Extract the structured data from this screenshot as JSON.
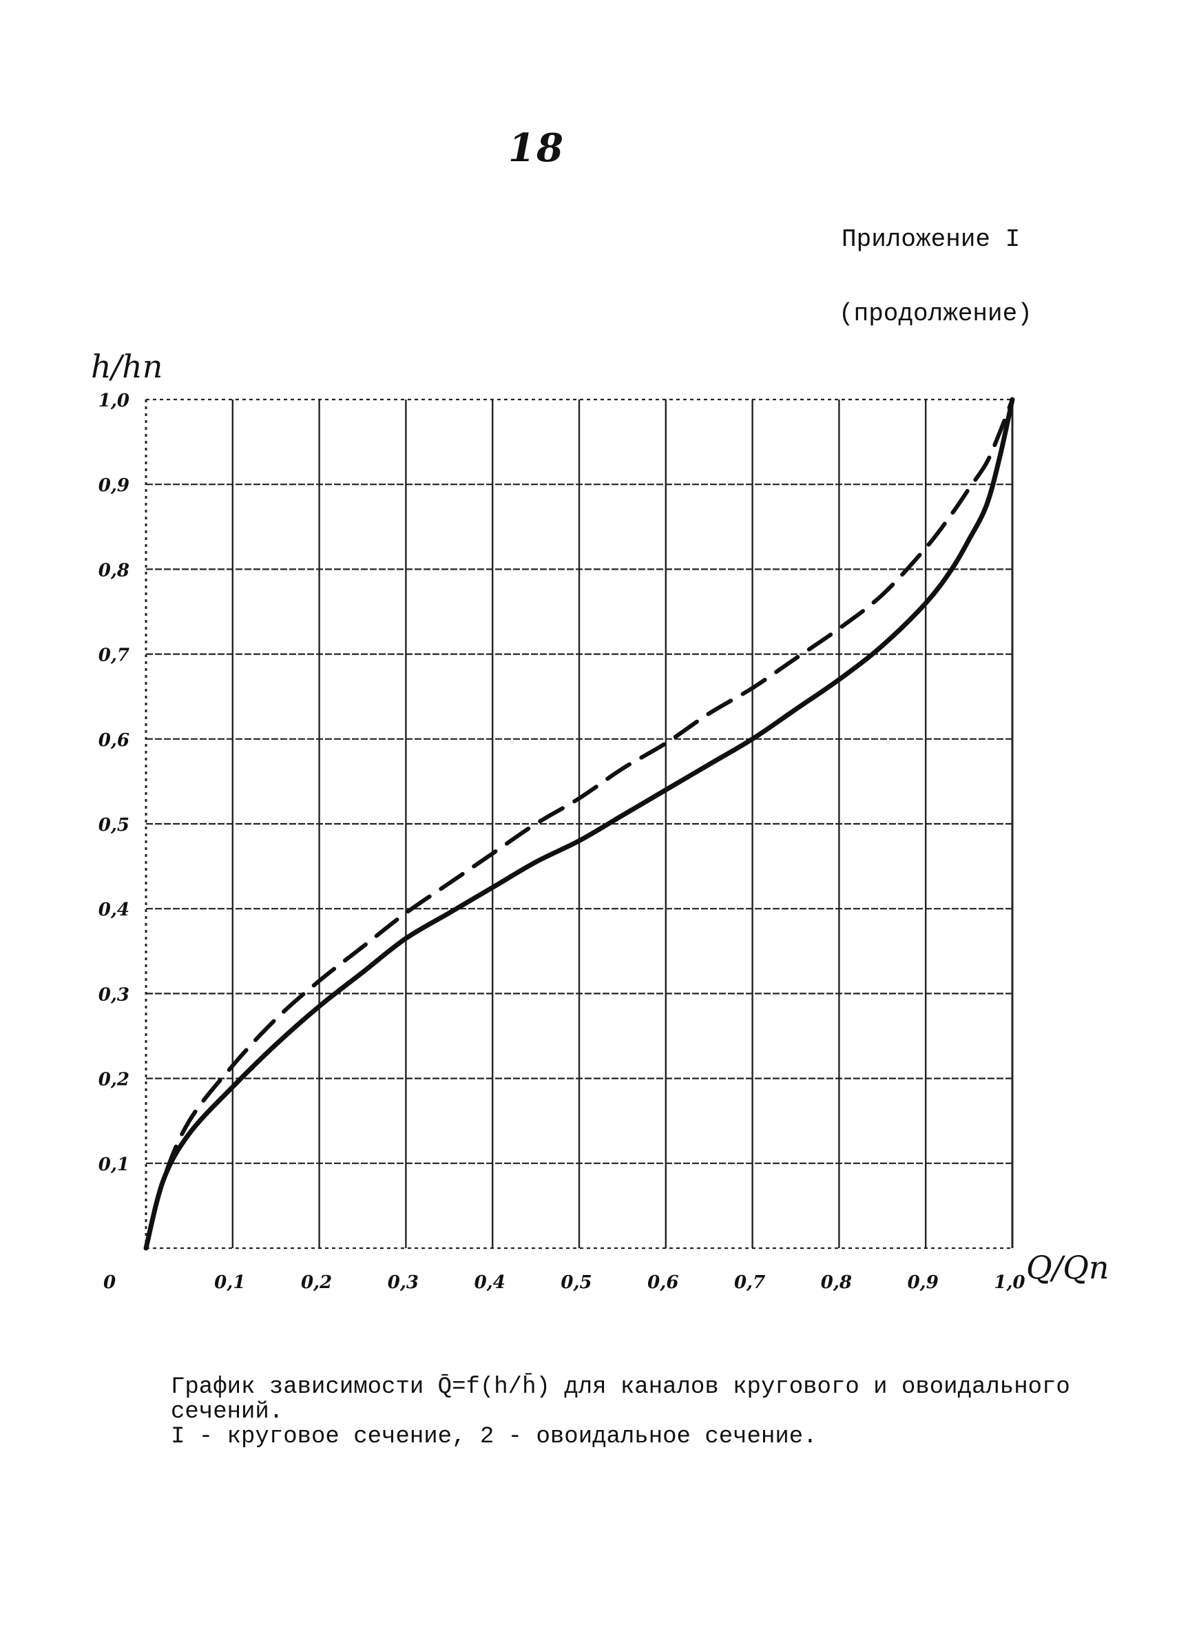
{
  "page_number": "18",
  "appendix": {
    "line1": "Приложение I",
    "line2": "(продолжение)"
  },
  "caption": {
    "line1": "График зависимости Q̄=f(h/h̄) для каналов кругового и овоидального",
    "line2": "сечений.",
    "line3": "I - круговое сечение, 2 - овоидальное сечение."
  },
  "chart_data": {
    "type": "line",
    "xlabel": "Q/Qп",
    "ylabel": "h/hп",
    "xlim": [
      0,
      1.0
    ],
    "ylim": [
      0,
      1.0
    ],
    "grid": true,
    "origin_label": "0",
    "x_tick_labels": [
      "0,1",
      "0,2",
      "0,3",
      "0,4",
      "0,5",
      "0,6",
      "0,7",
      "0,8",
      "0,9",
      "1,0"
    ],
    "y_tick_labels": [
      "0,1",
      "0,2",
      "0,3",
      "0,4",
      "0,5",
      "0,6",
      "0,7",
      "0,8",
      "0,9",
      "1,0"
    ],
    "series": [
      {
        "style": "solid",
        "color": "#111111",
        "x": [
          0.0,
          0.02,
          0.05,
          0.1,
          0.15,
          0.2,
          0.25,
          0.3,
          0.35,
          0.4,
          0.45,
          0.5,
          0.55,
          0.6,
          0.65,
          0.7,
          0.75,
          0.8,
          0.85,
          0.9,
          0.93,
          0.95,
          0.97,
          0.985,
          1.0
        ],
        "y": [
          0.0,
          0.08,
          0.135,
          0.19,
          0.24,
          0.285,
          0.325,
          0.365,
          0.395,
          0.425,
          0.455,
          0.48,
          0.51,
          0.54,
          0.57,
          0.6,
          0.635,
          0.67,
          0.71,
          0.76,
          0.8,
          0.835,
          0.875,
          0.93,
          1.0
        ]
      },
      {
        "style": "dashed",
        "color": "#111111",
        "x": [
          0.0,
          0.02,
          0.05,
          0.1,
          0.15,
          0.2,
          0.25,
          0.3,
          0.35,
          0.4,
          0.45,
          0.5,
          0.55,
          0.6,
          0.65,
          0.7,
          0.75,
          0.8,
          0.85,
          0.9,
          0.93,
          0.95,
          0.97,
          0.985,
          1.0
        ],
        "y": [
          0.0,
          0.08,
          0.15,
          0.215,
          0.27,
          0.315,
          0.355,
          0.395,
          0.43,
          0.465,
          0.5,
          0.53,
          0.565,
          0.595,
          0.63,
          0.66,
          0.695,
          0.73,
          0.77,
          0.825,
          0.865,
          0.895,
          0.925,
          0.96,
          1.0
        ]
      }
    ]
  }
}
